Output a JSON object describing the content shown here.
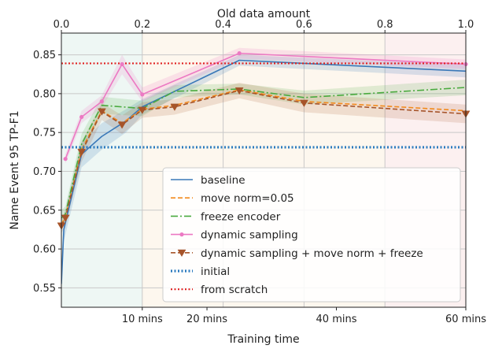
{
  "chart_data": {
    "type": "line",
    "xlabel": "Training time",
    "ylabel": "Name Event 95 TP-F1",
    "top_xlabel": "Old data amount",
    "ylim": [
      0.525,
      0.878
    ],
    "xlim_minutes": [
      0,
      60
    ],
    "bottom_ticks": [
      {
        "x": 10,
        "label": "10 mins"
      },
      {
        "x": 20,
        "label": "20 mins"
      },
      {
        "x": 40,
        "label": "40 mins"
      },
      {
        "x": 60,
        "label": "60 mins"
      }
    ],
    "top_ticks": [
      "0.0",
      "0.2",
      "0.4",
      "0.6",
      "0.8",
      "1.0"
    ],
    "y_ticks": [
      0.55,
      0.6,
      0.65,
      0.7,
      0.75,
      0.8,
      0.85
    ],
    "y_tick_labels": [
      "0.55",
      "0.60",
      "0.65",
      "0.70",
      "0.75",
      "0.80",
      "0.85"
    ],
    "grid": true,
    "legend_position": "lower-right",
    "background_bands": [
      {
        "from": 0,
        "to": 0.2,
        "color": "#eef7f4"
      },
      {
        "from": 0.2,
        "to": 0.8,
        "color": "#fdf7ee"
      },
      {
        "from": 0.8,
        "to": 1.0,
        "color": "#fcf0f0"
      }
    ],
    "series": [
      {
        "name": "baseline",
        "color": "#3a78b8",
        "dash": "",
        "width": 1.6,
        "marker": "none",
        "x": [
          0,
          0.3,
          2.5,
          5,
          8,
          10,
          25,
          60
        ],
        "y": [
          0.555,
          0.625,
          0.722,
          0.745,
          0.765,
          0.783,
          0.843,
          0.829
        ],
        "band": {
          "color": "#3a78b8",
          "opacity": 0.18,
          "lower": [
            0.55,
            0.61,
            0.705,
            0.728,
            0.75,
            0.773,
            0.836,
            0.821
          ],
          "upper": [
            0.56,
            0.64,
            0.738,
            0.762,
            0.78,
            0.793,
            0.85,
            0.837
          ]
        }
      },
      {
        "name": "move norm=0.05",
        "color": "#f28a1c",
        "dash": "6 3",
        "width": 1.6,
        "marker": "none",
        "x": [
          0,
          0.5,
          2.5,
          5,
          7.5,
          10,
          15,
          25,
          35,
          60
        ],
        "y": [
          0.632,
          0.641,
          0.728,
          0.778,
          0.762,
          0.78,
          0.785,
          0.805,
          0.79,
          0.778
        ],
        "band": null
      },
      {
        "name": "freeze encoder",
        "color": "#4aaa3f",
        "dash": "9 3 2 3",
        "width": 1.6,
        "marker": "none",
        "x": [
          0,
          0.5,
          2.5,
          5,
          10,
          15,
          25,
          35,
          60
        ],
        "y": [
          0.64,
          0.645,
          0.735,
          0.785,
          0.781,
          0.803,
          0.806,
          0.795,
          0.808
        ],
        "band": {
          "color": "#4aaa3f",
          "opacity": 0.16,
          "lower": [
            0.63,
            0.635,
            0.722,
            0.774,
            0.771,
            0.795,
            0.799,
            0.786,
            0.798
          ],
          "upper": [
            0.65,
            0.655,
            0.748,
            0.796,
            0.791,
            0.811,
            0.813,
            0.804,
            0.818
          ]
        }
      },
      {
        "name": "dynamic sampling",
        "color": "#ec79c3",
        "dash": "",
        "width": 1.6,
        "marker": "dot",
        "x": [
          0.5,
          2.5,
          5,
          7.5,
          10,
          25,
          60
        ],
        "y": [
          0.716,
          0.77,
          0.79,
          0.838,
          0.799,
          0.852,
          0.838
        ],
        "band": {
          "color": "#ec79c3",
          "opacity": 0.18,
          "lower": [
            0.71,
            0.762,
            0.782,
            0.825,
            0.79,
            0.845,
            0.832
          ],
          "upper": [
            0.722,
            0.778,
            0.798,
            0.85,
            0.808,
            0.859,
            0.844
          ]
        }
      },
      {
        "name": "dynamic sampling + move norm + freeze",
        "color": "#a6542a",
        "dash": "6 3",
        "width": 1.6,
        "marker": "triangle-down",
        "x": [
          0,
          0.5,
          2.5,
          5,
          7.5,
          10,
          15,
          25,
          35,
          60
        ],
        "y": [
          0.63,
          0.64,
          0.725,
          0.777,
          0.76,
          0.779,
          0.783,
          0.804,
          0.788,
          0.774
        ],
        "band": {
          "color": "#a6542a",
          "opacity": 0.16,
          "lower": [
            0.62,
            0.63,
            0.712,
            0.766,
            0.748,
            0.769,
            0.773,
            0.794,
            0.776,
            0.762
          ],
          "upper": [
            0.64,
            0.65,
            0.738,
            0.788,
            0.772,
            0.789,
            0.793,
            0.814,
            0.8,
            0.786
          ]
        }
      },
      {
        "name": "initial",
        "color": "#2c7bbf",
        "dash": "2 2.5",
        "width": 3.2,
        "marker": "none",
        "x": [
          0,
          60
        ],
        "y": [
          0.731,
          0.731
        ],
        "band": null
      },
      {
        "name": "from scratch",
        "color": "#e02020",
        "dash": "2 2.5",
        "width": 2.2,
        "marker": "none",
        "x": [
          0,
          60
        ],
        "y": [
          0.839,
          0.839
        ],
        "band": null
      }
    ]
  }
}
